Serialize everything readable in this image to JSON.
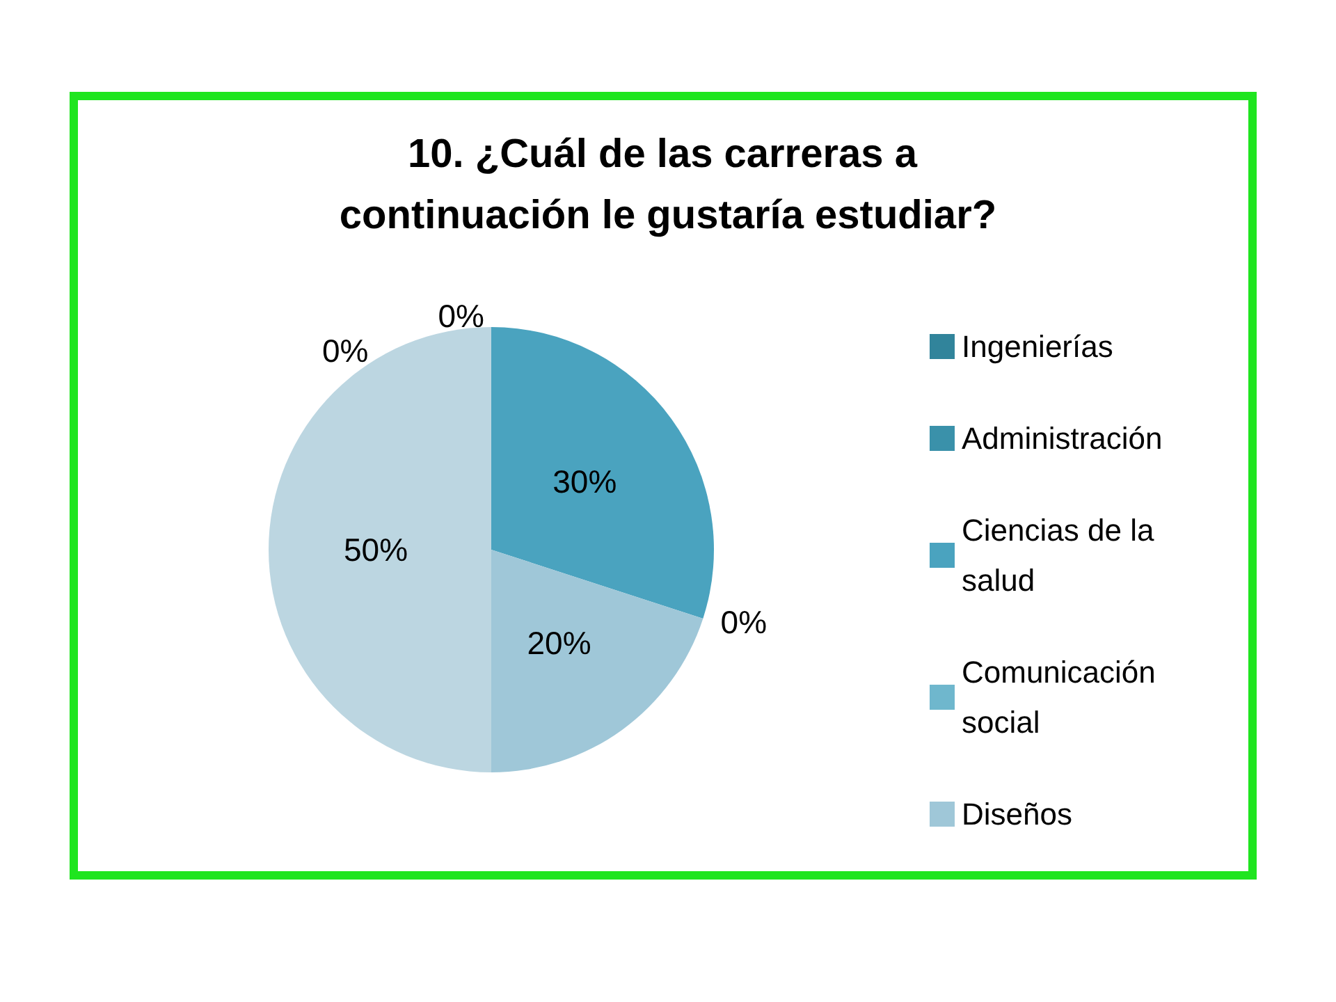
{
  "chart_data": {
    "type": "pie",
    "title": "10. ¿Cuál de las carreras a continuación le gustaría estudiar?",
    "categories": [
      "Ingenierías",
      "Administración",
      "Ciencias de la salud",
      "Comunicación social",
      "Diseños",
      null
    ],
    "values": [
      0,
      0,
      30,
      0,
      20,
      50
    ],
    "value_labels": [
      "0%",
      "0%",
      "30%",
      "0%",
      "20%",
      "50%"
    ],
    "colors": [
      "#31849b",
      "#3a91aa",
      "#4aa3bf",
      "#6fb7cd",
      "#9fc7d8",
      "#bcd6e1"
    ],
    "legend": "right"
  }
}
